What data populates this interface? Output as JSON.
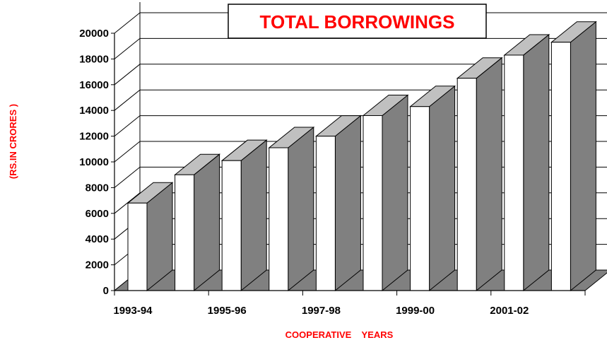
{
  "chart_data": {
    "type": "bar",
    "title": "TOTAL BORROWINGS",
    "xlabel": "COOPERATIVE    YEARS",
    "ylabel": "(RS.IN CRORES )",
    "x_tick_labels": [
      "1993-94",
      "1995-96",
      "1997-98",
      "1999-00",
      "2001-02"
    ],
    "y_ticks": [
      "0",
      "2000",
      "4000",
      "6000",
      "8000",
      "10000",
      "12000",
      "14000",
      "16000",
      "18000",
      "20000"
    ],
    "ylim": [
      0,
      20000
    ],
    "values": [
      6800,
      9000,
      10100,
      11100,
      12000,
      13600,
      14300,
      16500,
      18300,
      19300
    ],
    "grid": true,
    "style": "3d-bar",
    "colors": {
      "bar_front": "#ffffff",
      "bar_top": "#c0c0c0",
      "bar_side": "#808080",
      "floor": "#808080",
      "title": "#ff0000",
      "axis_title": "#ff0000",
      "line": "#000000"
    }
  }
}
